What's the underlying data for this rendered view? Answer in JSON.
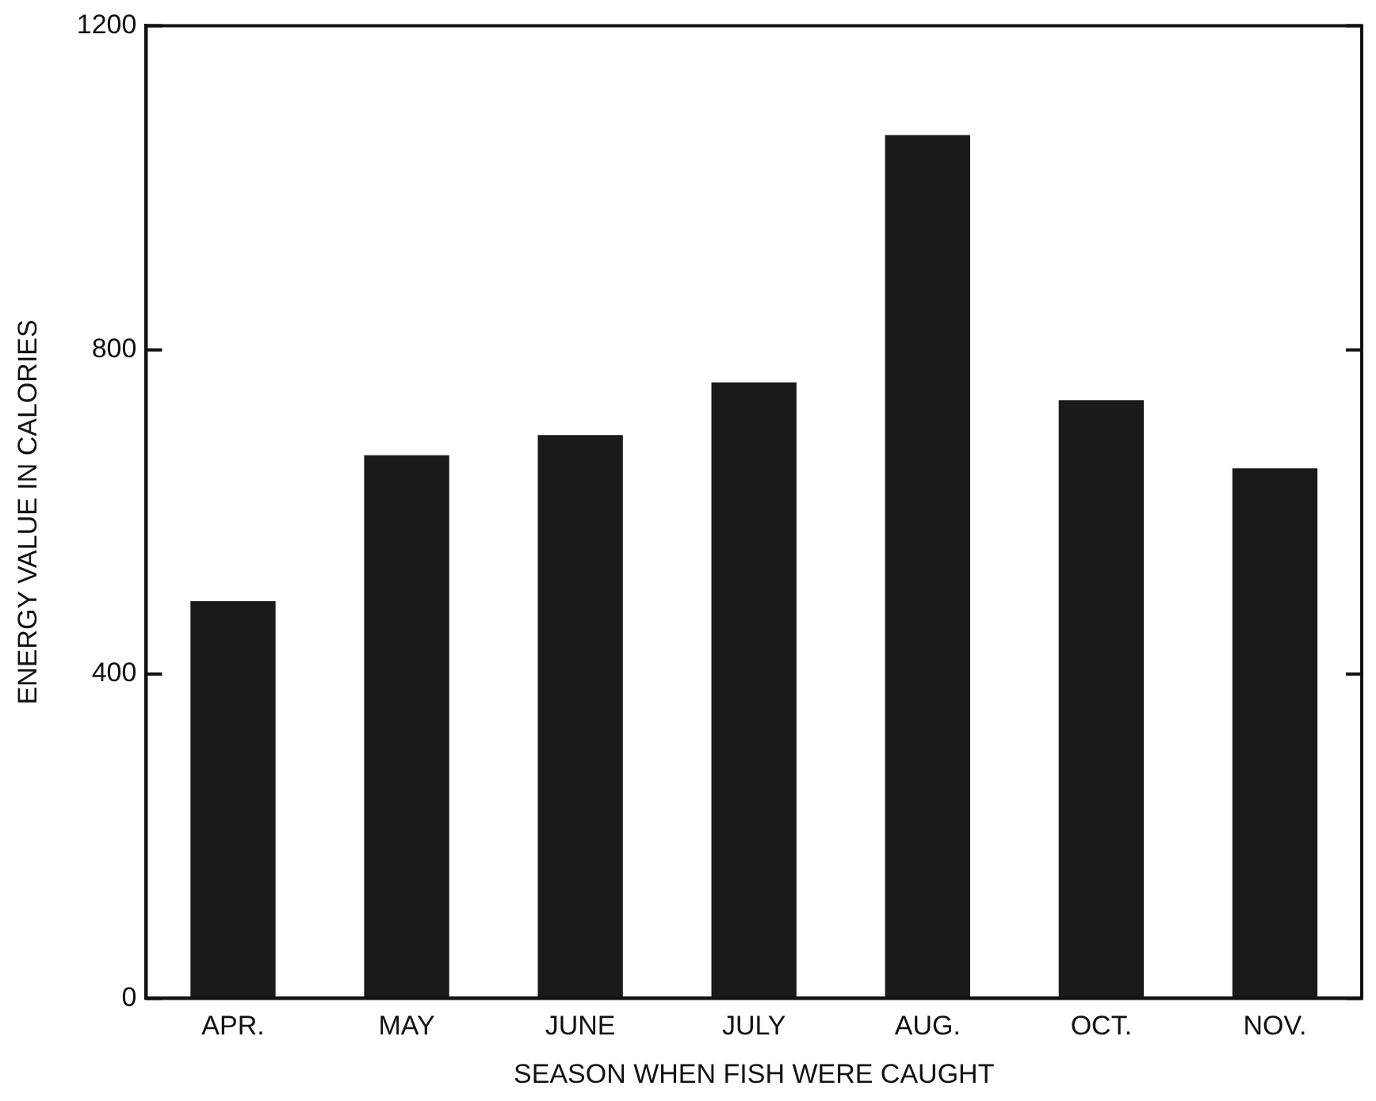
{
  "chart_data": {
    "type": "bar",
    "xlabel": "SEASON WHEN FISH WERE CAUGHT",
    "ylabel": "ENERGY VALUE IN CALORIES",
    "categories": [
      "APR.",
      "MAY",
      "JUNE",
      "JULY",
      "AUG.",
      "OCT.",
      "NOV."
    ],
    "values": [
      490,
      670,
      695,
      760,
      1065,
      738,
      654
    ],
    "color": "#1a1a1a",
    "ylim": [
      0,
      1200
    ],
    "yticks": [
      0,
      400,
      800,
      1200
    ],
    "grid": false,
    "legend": false
  }
}
